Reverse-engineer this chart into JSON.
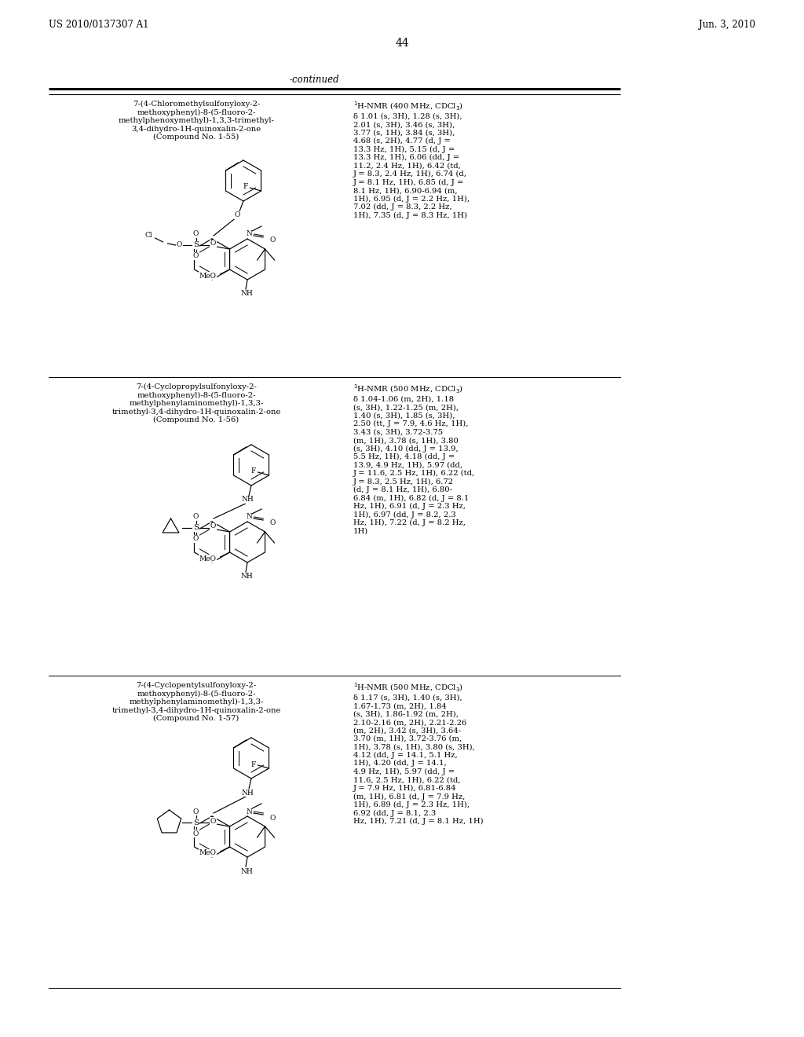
{
  "page_number": "44",
  "left_header": "US 2010/0137307 A1",
  "right_header": "Jun. 3, 2010",
  "continued_label": "-continued",
  "bg_color": "#ffffff",
  "entries": [
    {
      "compound_name": "7-(4-Chloromethylsulfonyloxy-2-\nmethoxyphenyl)-8-(5-fluoro-2-\nmethylphenoxymethyl)-1,3,3-trimethyl-\n3,4-dihydro-1H-quinoxalin-2-one\n(Compound No. 1-55)",
      "nmr_title": "$^{1}$H-NMR (400 MHz, CDCl$_3$)",
      "nmr_body": "δ 1.01 (s, 3H), 1.28 (s, 3H),\n2.01 (s, 3H), 3.46 (s, 3H),\n3.77 (s, 1H), 3.84 (s, 3H),\n4.68 (s, 2H), 4.77 (d, J =\n13.3 Hz, 1H), 5.15 (d, J =\n13.3 Hz, 1H), 6.06 (dd, J =\n11.2, 2.4 Hz, 1H), 6.42 (td,\nJ = 8.3, 2.4 Hz, 1H), 6.74 (d,\nJ = 8.1 Hz, 1H), 6.85 (d, J =\n8.1 Hz, 1H), 6.90-6.94 (m,\n1H), 6.95 (d, J = 2.2 Hz, 1H),\n7.02 (dd, J = 8.3, 2.2 Hz,\n1H), 7.35 (d, J = 8.3 Hz, 1H)"
    },
    {
      "compound_name": "7-(4-Cyclopropylsulfonyloxy-2-\nmethoxyphenyl)-8-(5-fluoro-2-\nmethylphenylaminomethyl)-1,3,3-\ntrimethyl-3,4-dihydro-1H-quinoxalin-2-one\n(Compound No. 1-56)",
      "nmr_title": "$^{1}$H-NMR (500 MHz, CDCl$_3$)",
      "nmr_body": "δ 1.04-1.06 (m, 2H), 1.18\n(s, 3H), 1.22-1.25 (m, 2H),\n1.40 (s, 3H), 1.85 (s, 3H),\n2.50 (tt, J = 7.9, 4.6 Hz, 1H),\n3.43 (s, 3H), 3.72-3.75\n(m, 1H), 3.78 (s, 1H), 3.80\n(s, 3H), 4.10 (dd, J = 13.9,\n5.5 Hz, 1H), 4.18 (dd, J =\n13.9, 4.9 Hz, 1H), 5.97 (dd,\nJ = 11.6, 2.5 Hz, 1H), 6.22 (td,\nJ = 8.3, 2.5 Hz, 1H), 6.72\n(d, J = 8.1 Hz, 1H), 6.80-\n6.84 (m, 1H), 6.82 (d, J = 8.1\nHz, 1H), 6.91 (d, J = 2.3 Hz,\n1H), 6.97 (dd, J = 8.2, 2.3\nHz, 1H), 7.22 (d, J = 8.2 Hz,\n1H)"
    },
    {
      "compound_name": "7-(4-Cyclopentylsulfonyloxy-2-\nmethoxyphenyl)-8-(5-fluoro-2-\nmethylphenylaminomethyl)-1,3,3-\ntrimethyl-3,4-dihydro-1H-quinoxalin-2-one\n(Compound No. 1-57)",
      "nmr_title": "$^{1}$H-NMR (500 MHz, CDCl$_3$)",
      "nmr_body": "δ 1.17 (s, 3H), 1.40 (s, 3H),\n1.67-1.73 (m, 2H), 1.84\n(s, 3H), 1.86-1.92 (m, 2H),\n2.10-2.16 (m, 2H), 2.21-2.26\n(m, 2H), 3.42 (s, 3H), 3.64-\n3.70 (m, 1H), 3.72-3.76 (m,\n1H), 3.78 (s, 1H), 3.80 (s, 3H),\n4.12 (dd, J = 14.1, 5.1 Hz,\n1H), 4.20 (dd, J = 14.1,\n4.9 Hz, 1H), 5.97 (dd, J =\n11.6, 2.5 Hz, 1H), 6.22 (td,\nJ = 7.9 Hz, 1H), 6.81-6.84\n(m, 1H), 6.81 (d, J = 7.9 Hz,\n1H), 6.89 (d, J = 2.3 Hz, 1H),\n6.92 (dd, J = 8.1, 2.3\nHz, 1H), 7.21 (d, J = 8.1 Hz, 1H)"
    }
  ],
  "font_size_header": 8.5,
  "font_size_body": 7.2,
  "font_size_page": 10,
  "font_size_nmr": 7.2,
  "font_size_chem_label": 6.5
}
